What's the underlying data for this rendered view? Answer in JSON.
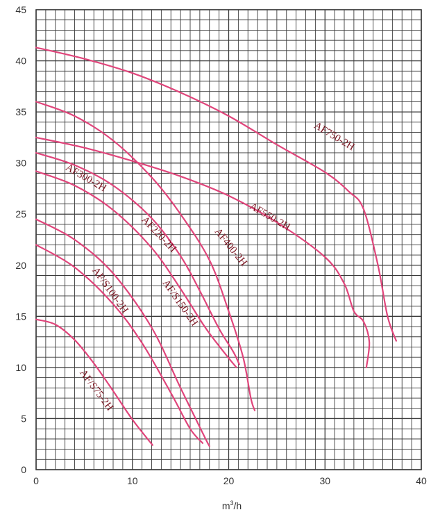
{
  "chart_data": {
    "type": "line",
    "title": "",
    "xlabel_base": "m",
    "xlabel_sup": "3",
    "xlabel_tail": "/h",
    "ylabel": "",
    "xlim": [
      0,
      40
    ],
    "ylim": [
      0,
      45
    ],
    "x_ticks": [
      0,
      10,
      20,
      30,
      40
    ],
    "y_ticks": [
      0,
      5,
      10,
      15,
      20,
      25,
      30,
      35,
      40,
      45
    ],
    "x_minor_step": 1,
    "y_minor_step": 1,
    "grid": true,
    "colors": {
      "grid": "#3a3a3a",
      "curve": "#e0457b",
      "label": "#7a1420",
      "axis_text": "#333333"
    },
    "series": [
      {
        "name": "AF750-2H",
        "x": [
          0,
          5,
          10,
          15,
          20,
          25,
          30,
          32.5,
          34,
          35.5,
          36.5,
          37.4
        ],
        "y": [
          41.3,
          40.2,
          38.8,
          36.9,
          34.6,
          31.8,
          29.1,
          27.2,
          25.5,
          20,
          15,
          12.6
        ],
        "label": {
          "x": 28.8,
          "y": 33.5,
          "rotate": 31
        }
      },
      {
        "name": "AF550-2H",
        "x": [
          0,
          5,
          10,
          15,
          20,
          25,
          30,
          32,
          33,
          34,
          34.6,
          34.3
        ],
        "y": [
          32.5,
          31.5,
          30.2,
          28.7,
          26.8,
          24.2,
          20.8,
          18.2,
          15.5,
          14.5,
          12.5,
          10
        ],
        "label": {
          "x": 22.1,
          "y": 25.6,
          "rotate": 30
        }
      },
      {
        "name": "AF400-2H",
        "x": [
          0,
          4,
          8,
          12,
          15,
          18,
          20,
          21.5,
          22.3,
          22.7
        ],
        "y": [
          36,
          34.6,
          32.2,
          28.6,
          25,
          20.5,
          15.5,
          11,
          7,
          5.8
        ],
        "label": {
          "x": 18.5,
          "y": 23.3,
          "rotate": 51
        }
      },
      {
        "name": "AF300-2H",
        "x": [
          0,
          4,
          8,
          12,
          15,
          17,
          19,
          20.5,
          21.1
        ],
        "y": [
          31,
          29.8,
          27.8,
          24.6,
          20.9,
          17.5,
          13.8,
          11.5,
          10.3
        ],
        "label": {
          "x": 3,
          "y": 29.4,
          "rotate": 30
        }
      },
      {
        "name": "AF220-2H",
        "x": [
          0,
          4,
          8,
          12,
          15,
          17.5,
          19.5,
          20.8
        ],
        "y": [
          29.2,
          27.8,
          25.4,
          21.7,
          17.7,
          14,
          11.5,
          10
        ],
        "label": {
          "x": 10.9,
          "y": 24.4,
          "rotate": 46
        }
      },
      {
        "name": "AF/S150-2H",
        "x": [
          0,
          4,
          8,
          12,
          15,
          17.5,
          18
        ],
        "y": [
          24.5,
          22.5,
          19.2,
          13.9,
          8,
          3.2,
          2.3
        ],
        "label": {
          "x": 13.1,
          "y": 18.3,
          "rotate": 55
        }
      },
      {
        "name": "AF/S100-2H",
        "x": [
          0,
          4,
          8,
          11,
          14,
          16,
          17.3
        ],
        "y": [
          22,
          19.8,
          16.2,
          12.4,
          7.5,
          4,
          2.6
        ],
        "label": {
          "x": 5.8,
          "y": 19.5,
          "rotate": 54
        }
      },
      {
        "name": "AF/S75-2H",
        "x": [
          0,
          2,
          4,
          6,
          8,
          10,
          12.1
        ],
        "y": [
          14.7,
          14.2,
          12.7,
          10.4,
          7.7,
          4.9,
          2.4
        ],
        "label": {
          "x": 4.5,
          "y": 9.5,
          "rotate": 53
        }
      }
    ]
  }
}
